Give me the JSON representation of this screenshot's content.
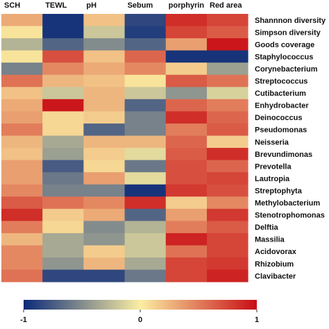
{
  "chart_data": {
    "type": "heatmap",
    "columns": [
      "SCH",
      "TEWL",
      "pH",
      "Sebum",
      "porphyrin",
      "Red area"
    ],
    "rows": [
      "Shannnon diversity",
      "Simpson diversity",
      "Goods coverage",
      "Staphylococcus",
      "Corynebacterium",
      "Streptococcus",
      "Cutibacterium",
      "Enhydrobacter",
      "Deinococcus",
      "Pseudomonas",
      "Neisseria",
      "Brevundimonas",
      "Prevotella",
      "Lautropia",
      "Streptophyta",
      "Methylobacterium",
      "Stenotrophomonas",
      "Delftia",
      "Massilia",
      "Acidovorax",
      "Rhizobium",
      "Clavibacter"
    ],
    "values": [
      [
        0.3,
        -0.95,
        0.2,
        -0.85,
        0.85,
        0.75
      ],
      [
        0.05,
        -0.95,
        -0.2,
        -0.9,
        0.75,
        0.65
      ],
      [
        -0.3,
        -0.7,
        -0.5,
        -0.7,
        0.35,
        0.95
      ],
      [
        0.05,
        0.7,
        0.2,
        0.6,
        -0.95,
        -0.95
      ],
      [
        -0.55,
        0.45,
        0.3,
        0.45,
        0.15,
        -0.4
      ],
      [
        0.55,
        0.25,
        0.2,
        0.05,
        0.65,
        0.55
      ],
      [
        0.2,
        -0.2,
        0.25,
        -0.2,
        -0.45,
        -0.15
      ],
      [
        0.3,
        0.95,
        0.25,
        -0.7,
        0.6,
        0.5
      ],
      [
        0.35,
        0.1,
        0.15,
        -0.55,
        0.85,
        0.6
      ],
      [
        0.5,
        0.1,
        -0.7,
        -0.55,
        0.5,
        0.65
      ],
      [
        0.25,
        -0.35,
        0.25,
        0.25,
        0.6,
        0.15
      ],
      [
        0.2,
        -0.4,
        0.15,
        -0.1,
        0.65,
        0.85
      ],
      [
        0.35,
        -0.75,
        0.1,
        -0.6,
        0.7,
        0.6
      ],
      [
        0.35,
        -0.6,
        0.35,
        -0.1,
        0.7,
        0.75
      ],
      [
        0.45,
        -0.55,
        -0.55,
        -0.95,
        0.8,
        0.7
      ],
      [
        0.65,
        0.55,
        0.45,
        0.85,
        0.15,
        0.45
      ],
      [
        0.85,
        0.15,
        0.3,
        -0.7,
        0.35,
        0.8
      ],
      [
        0.5,
        0.1,
        -0.5,
        -0.3,
        0.5,
        0.65
      ],
      [
        0.25,
        -0.35,
        -0.45,
        -0.2,
        0.9,
        0.75
      ],
      [
        0.45,
        -0.35,
        0.15,
        -0.2,
        0.55,
        0.75
      ],
      [
        0.45,
        -0.45,
        0.25,
        -0.35,
        0.75,
        0.8
      ],
      [
        0.55,
        -0.85,
        -0.85,
        -0.6,
        0.75,
        0.9
      ]
    ],
    "colorbar": {
      "min": -1,
      "max": 1,
      "ticks": [
        -1,
        0,
        1
      ],
      "tick_labels": [
        "-1",
        "0",
        "1"
      ],
      "colors": [
        "#0b2a78",
        "#fbeea2",
        "#c80c14"
      ]
    },
    "title": "",
    "xlabel": "",
    "ylabel": ""
  }
}
